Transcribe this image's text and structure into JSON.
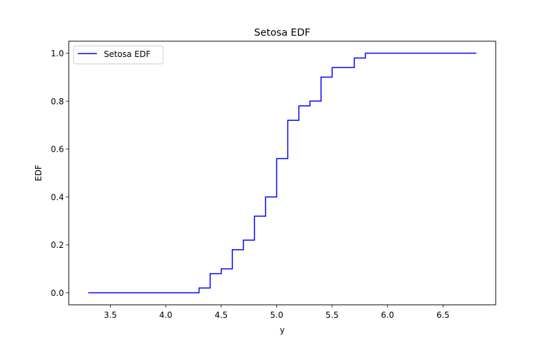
{
  "chart_data": {
    "type": "line",
    "title": "Setosa EDF",
    "xlabel": "y",
    "ylabel": "EDF",
    "xlim": [
      3.125,
      6.975
    ],
    "ylim": [
      -0.05,
      1.05
    ],
    "xticks": [
      3.5,
      4.0,
      4.5,
      5.0,
      5.5,
      6.0,
      6.5
    ],
    "xtick_labels": [
      "3.5",
      "4.0",
      "4.5",
      "5.0",
      "5.5",
      "6.0",
      "6.5"
    ],
    "yticks": [
      0.0,
      0.2,
      0.4,
      0.6,
      0.8,
      1.0
    ],
    "ytick_labels": [
      "0.0",
      "0.2",
      "0.4",
      "0.6",
      "0.8",
      "1.0"
    ],
    "grid": false,
    "legend_position": "upper-left",
    "step_where": "post",
    "series": [
      {
        "name": "Setosa EDF",
        "color": "#0000ff",
        "x": [
          3.3,
          4.3,
          4.4,
          4.5,
          4.6,
          4.7,
          4.8,
          4.9,
          5.0,
          5.1,
          5.2,
          5.3,
          5.4,
          5.5,
          5.7,
          5.8,
          6.8
        ],
        "y": [
          0.0,
          0.02,
          0.08,
          0.1,
          0.18,
          0.22,
          0.32,
          0.4,
          0.56,
          0.72,
          0.78,
          0.8,
          0.9,
          0.94,
          0.98,
          1.0,
          1.0
        ]
      }
    ]
  }
}
